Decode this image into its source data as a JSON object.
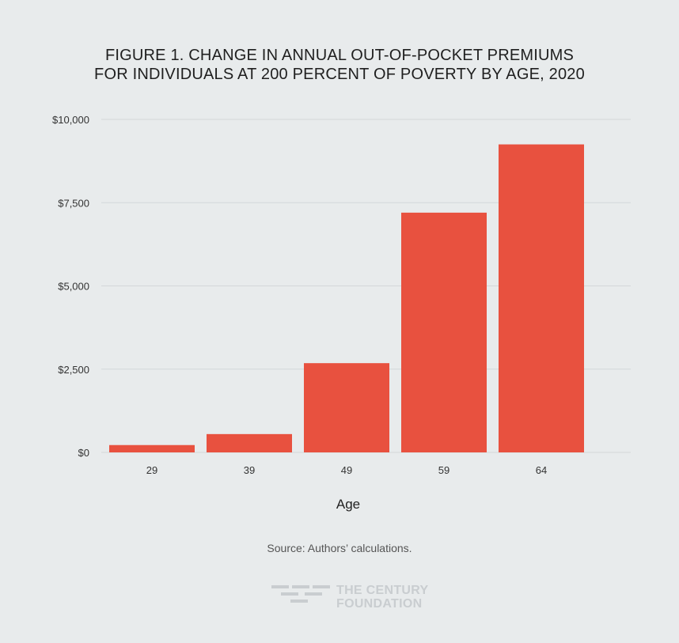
{
  "title_lines": [
    "FIGURE 1. CHANGE IN ANNUAL OUT-OF-POCKET PREMIUMS",
    "FOR INDIVIDUALS AT 200 PERCENT OF POVERTY BY AGE, 2020"
  ],
  "source": "Source: Authors’ calculations.",
  "logo": {
    "line1": "THE CENTURY",
    "line2": "FOUNDATION"
  },
  "colors": {
    "background": "#e8ebec",
    "bar": "#e8513f",
    "grid": "#d3d7d9"
  },
  "chart_data": {
    "type": "bar",
    "title": "FIGURE 1. CHANGE IN ANNUAL OUT-OF-POCKET PREMIUMS FOR INDIVIDUALS AT 200 PERCENT OF POVERTY BY AGE, 2020",
    "categories": [
      "29",
      "39",
      "49",
      "59",
      "64"
    ],
    "values": [
      220,
      550,
      2680,
      7200,
      9250
    ],
    "xlabel": "Age",
    "ylabel": "",
    "ylim": [
      0,
      10000
    ],
    "yticks": [
      0,
      2500,
      5000,
      7500,
      10000
    ],
    "ytick_labels": [
      "$0",
      "$2,500",
      "$5,000",
      "$7,500",
      "$10,000"
    ],
    "grid": true
  }
}
